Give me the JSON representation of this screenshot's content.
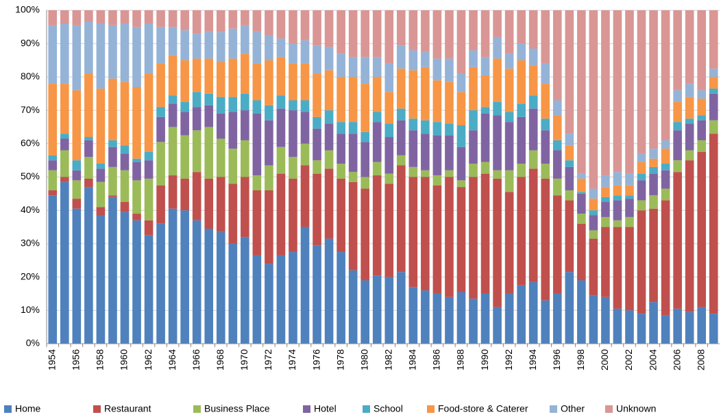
{
  "chart_data": {
    "type": "stacked_bar",
    "categories": [
      "1954",
      null,
      "1956",
      null,
      "1958",
      null,
      "1960",
      null,
      "1962",
      null,
      "1964",
      null,
      "1966",
      null,
      "1968",
      null,
      "1970",
      null,
      "1972",
      null,
      "1974",
      null,
      "1976",
      null,
      "1978",
      null,
      "1980",
      null,
      "1982",
      null,
      "1984",
      null,
      "1986",
      null,
      "1988",
      null,
      "1990",
      null,
      "1992",
      null,
      "1994",
      null,
      "1996",
      null,
      "1998",
      null,
      "2000",
      null,
      "2002",
      null,
      "2004",
      null,
      "2006",
      null,
      "2008",
      null
    ],
    "series": [
      {
        "name": "Home",
        "color": "#4f81bd",
        "values": [
          44.5,
          48.5,
          40.5,
          47,
          38.5,
          44,
          39.5,
          37,
          32.5,
          36,
          40.5,
          40,
          37,
          34.5,
          33.5,
          30,
          32,
          26.5,
          24,
          26.5,
          27.5,
          35,
          29.5,
          31.5,
          27.5,
          22,
          19,
          20.5,
          20,
          21.5,
          17,
          16,
          15,
          14,
          15.5,
          13.5,
          15,
          11,
          15,
          17.5,
          18.5,
          13,
          15,
          21.5,
          19,
          14.5,
          14,
          10.5,
          10,
          9,
          12.5,
          8.5,
          10.5,
          9.5,
          11,
          9
        ]
      },
      {
        "name": "Restaurant",
        "color": "#c0504d",
        "values": [
          1.5,
          1.5,
          3,
          2.5,
          2.5,
          0.5,
          3,
          2,
          4.5,
          11.5,
          10,
          9.5,
          14.5,
          15,
          16.5,
          18,
          18,
          19.5,
          22,
          24.5,
          22,
          18.5,
          21.5,
          21,
          22,
          26.5,
          27.5,
          30,
          28,
          32,
          33,
          34,
          32.5,
          36,
          31.5,
          36.5,
          36,
          38.5,
          30.5,
          32.5,
          34,
          36.5,
          29.5,
          21.5,
          17,
          17,
          21,
          24.5,
          25,
          31,
          28,
          34.5,
          41,
          45.5,
          46.5,
          54
        ]
      },
      {
        "name": "Business Place",
        "color": "#9bbb59",
        "values": [
          6,
          8,
          5.5,
          6.5,
          7.5,
          8.5,
          9.5,
          10,
          12.5,
          13,
          14.5,
          13,
          12.5,
          15.5,
          11.5,
          10.5,
          11,
          4.5,
          7.5,
          8,
          6.5,
          6.5,
          4,
          5.5,
          4.5,
          3,
          3.5,
          4,
          3,
          3,
          3,
          2,
          3,
          2,
          2,
          4,
          3.5,
          2.5,
          6.5,
          4,
          5.5,
          4.5,
          5,
          3,
          3,
          2.5,
          3,
          2,
          3,
          3,
          4,
          3.5,
          3.5,
          3,
          3.5,
          4
        ]
      },
      {
        "name": "Hotel",
        "color": "#8064a2",
        "values": [
          3,
          3.5,
          3,
          5,
          4,
          6,
          5,
          5.5,
          5.5,
          7.5,
          7,
          7,
          7,
          6.5,
          7.5,
          11,
          9,
          18.5,
          13.5,
          11.5,
          14,
          9.5,
          9.5,
          8,
          9,
          11.5,
          10.5,
          12,
          11,
          10.5,
          11,
          11,
          12,
          10.5,
          10,
          10,
          14.5,
          16.5,
          14.5,
          14,
          12.5,
          10,
          8.5,
          7,
          6,
          4.5,
          4.5,
          6,
          5.5,
          6,
          6.5,
          5.5,
          9,
          8,
          6,
          8
        ]
      },
      {
        "name": "School",
        "color": "#4bacc6",
        "values": [
          1.5,
          1.5,
          3,
          1,
          1.5,
          2,
          2.5,
          1,
          2.5,
          3,
          2.5,
          3,
          4.5,
          3.5,
          5,
          4.5,
          5,
          4,
          4.5,
          4,
          3,
          3.5,
          3.5,
          4,
          3.5,
          3.5,
          3,
          3,
          4,
          3.5,
          3.5,
          4,
          4,
          3.5,
          6.5,
          6,
          2,
          4,
          3,
          4,
          4,
          3.5,
          3,
          2,
          0.5,
          1.5,
          1.5,
          1.5,
          1,
          2,
          2,
          2,
          2.5,
          1.5,
          1.5,
          1.5
        ]
      },
      {
        "name": "Food-store & Caterer",
        "color": "#f79646",
        "values": [
          21.5,
          15,
          21,
          19,
          22.5,
          18.5,
          19,
          21.5,
          23.5,
          13,
          12,
          12.5,
          10,
          10.5,
          10.5,
          11.5,
          12,
          11,
          13.5,
          11.5,
          11,
          11,
          13,
          12,
          13.5,
          13.5,
          14.5,
          10.5,
          9.5,
          12,
          14.5,
          16,
          12.5,
          12.5,
          10,
          13,
          9.5,
          13,
          13,
          13,
          9,
          10.5,
          7.5,
          4.5,
          4,
          3.5,
          3,
          3,
          3,
          3.5,
          2.5,
          4.5,
          6,
          6.5,
          5,
          3.5
        ]
      },
      {
        "name": "Other",
        "color": "#95b3d7",
        "values": [
          17.5,
          18,
          19.5,
          15.5,
          19.5,
          16,
          17.5,
          18,
          15,
          11,
          8.5,
          9,
          7.5,
          8,
          9,
          9,
          8.5,
          9.5,
          7.5,
          5.5,
          6,
          7,
          8.5,
          7,
          7,
          6,
          8,
          6,
          8.5,
          7,
          6,
          4.5,
          6.5,
          7,
          5.5,
          5,
          5.5,
          6.5,
          4.5,
          5,
          5,
          6,
          4.5,
          3.5,
          1.5,
          3,
          3.5,
          4,
          3.5,
          2.5,
          3,
          2.5,
          3.5,
          4,
          2.5,
          2.5
        ]
      },
      {
        "name": "Unknown",
        "color": "#d99694",
        "values": [
          4.5,
          4,
          4.5,
          3.5,
          4,
          4.5,
          4,
          5,
          4,
          5,
          5,
          6,
          7,
          6.5,
          6.5,
          5.5,
          4.5,
          6.5,
          7.5,
          8.5,
          10,
          9,
          10.5,
          11,
          13,
          14,
          14,
          14,
          16,
          10.5,
          12,
          12.5,
          14.5,
          14.5,
          19,
          12,
          14,
          8,
          13,
          10,
          11.5,
          16,
          27,
          37,
          49,
          53.5,
          49.5,
          48.5,
          49,
          43,
          41.5,
          39,
          24,
          22,
          24,
          17.5
        ]
      }
    ],
    "ylim": [
      0,
      100
    ],
    "yticks": [
      {
        "value": 0,
        "label": "0%"
      },
      {
        "value": 10,
        "label": "10%"
      },
      {
        "value": 20,
        "label": "20%"
      },
      {
        "value": 30,
        "label": "30%"
      },
      {
        "value": 40,
        "label": "40%"
      },
      {
        "value": 50,
        "label": "50%"
      },
      {
        "value": 60,
        "label": "60%"
      },
      {
        "value": 70,
        "label": "70%"
      },
      {
        "value": 80,
        "label": "80%"
      },
      {
        "value": 90,
        "label": "90%"
      },
      {
        "value": 100,
        "label": "100%"
      }
    ],
    "grid": true,
    "legend": "bottom"
  }
}
